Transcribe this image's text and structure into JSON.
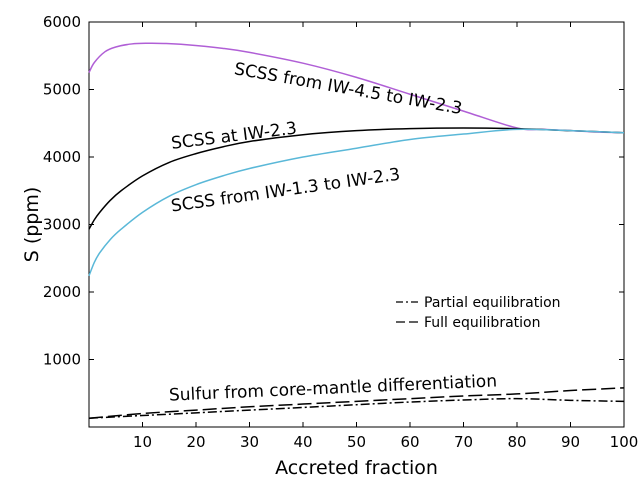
{
  "chart_data": {
    "type": "line",
    "xlabel": "Accreted fraction",
    "ylabel": "S (ppm)",
    "xlim": [
      0,
      100
    ],
    "ylim": [
      0,
      6000
    ],
    "xticks": [
      10,
      20,
      30,
      40,
      50,
      60,
      70,
      80,
      90,
      100
    ],
    "yticks": [
      1000,
      2000,
      3000,
      4000,
      5000,
      6000
    ],
    "grid": false,
    "legend_position": "center-right",
    "series": [
      {
        "key": "scss_iw45",
        "label": "SCSS from IW-4.5 to IW-2.3",
        "color": "#b05fd6",
        "dash": "solid",
        "x": [
          0,
          1,
          3,
          5,
          8,
          11,
          14,
          18,
          25,
          30,
          40,
          50,
          60,
          70,
          80,
          85,
          90,
          95,
          100
        ],
        "y": [
          5250,
          5400,
          5560,
          5630,
          5675,
          5685,
          5682,
          5665,
          5610,
          5550,
          5390,
          5180,
          4930,
          4680,
          4430,
          4410,
          4390,
          4370,
          4360
        ]
      },
      {
        "key": "scss_iw23",
        "label": "SCSS at IW-2.3",
        "color": "#000000",
        "dash": "solid",
        "x": [
          0,
          1,
          2,
          4,
          6,
          10,
          15,
          20,
          25,
          30,
          40,
          50,
          60,
          70,
          80,
          90,
          100
        ],
        "y": [
          2930,
          3070,
          3180,
          3360,
          3500,
          3720,
          3920,
          4050,
          4150,
          4230,
          4330,
          4390,
          4420,
          4430,
          4420,
          4390,
          4360
        ]
      },
      {
        "key": "scss_iw13",
        "label": "SCSS from IW-1.3 to IW-2.3",
        "color": "#5ab8d8",
        "dash": "solid",
        "x": [
          0,
          1,
          2,
          4,
          6,
          10,
          15,
          20,
          25,
          30,
          40,
          50,
          60,
          70,
          80,
          90,
          100
        ],
        "y": [
          2240,
          2440,
          2580,
          2780,
          2930,
          3180,
          3420,
          3590,
          3720,
          3830,
          4000,
          4130,
          4260,
          4340,
          4410,
          4390,
          4360
        ]
      },
      {
        "key": "partial",
        "label": "Partial equilibration",
        "color": "#000000",
        "dash": "dashdot",
        "x": [
          0,
          10,
          20,
          30,
          40,
          50,
          60,
          70,
          80,
          90,
          100
        ],
        "y": [
          130,
          170,
          210,
          250,
          290,
          330,
          370,
          400,
          420,
          395,
          380
        ]
      },
      {
        "key": "full",
        "label": "Full equilibration",
        "color": "#000000",
        "dash": "longdash",
        "x": [
          0,
          10,
          20,
          30,
          40,
          50,
          60,
          70,
          80,
          90,
          100
        ],
        "y": [
          130,
          200,
          250,
          300,
          340,
          380,
          420,
          460,
          490,
          540,
          580
        ]
      }
    ],
    "annotations": [
      {
        "key": "scss_iw45",
        "text": "SCSS from IW-4.5 to IW-2.3",
        "x": 27,
        "y": 5230,
        "angle": 10
      },
      {
        "key": "scss_iw23",
        "text": "SCSS at IW-2.3",
        "x": 15.5,
        "y": 4120,
        "angle": -7
      },
      {
        "key": "scss_iw13",
        "text": "SCSS from IW-1.3 to IW-2.3",
        "x": 15.5,
        "y": 3190,
        "angle": -8
      },
      {
        "key": "sulfur",
        "text": "Sulfur from core-mantle differentiation",
        "x": 15,
        "y": 390,
        "angle": -2.5
      }
    ],
    "legend": [
      {
        "key": "partial",
        "text": "Partial equilibration",
        "dash": "dashdot"
      },
      {
        "key": "full",
        "text": "Full equilibration",
        "dash": "longdash"
      }
    ]
  }
}
